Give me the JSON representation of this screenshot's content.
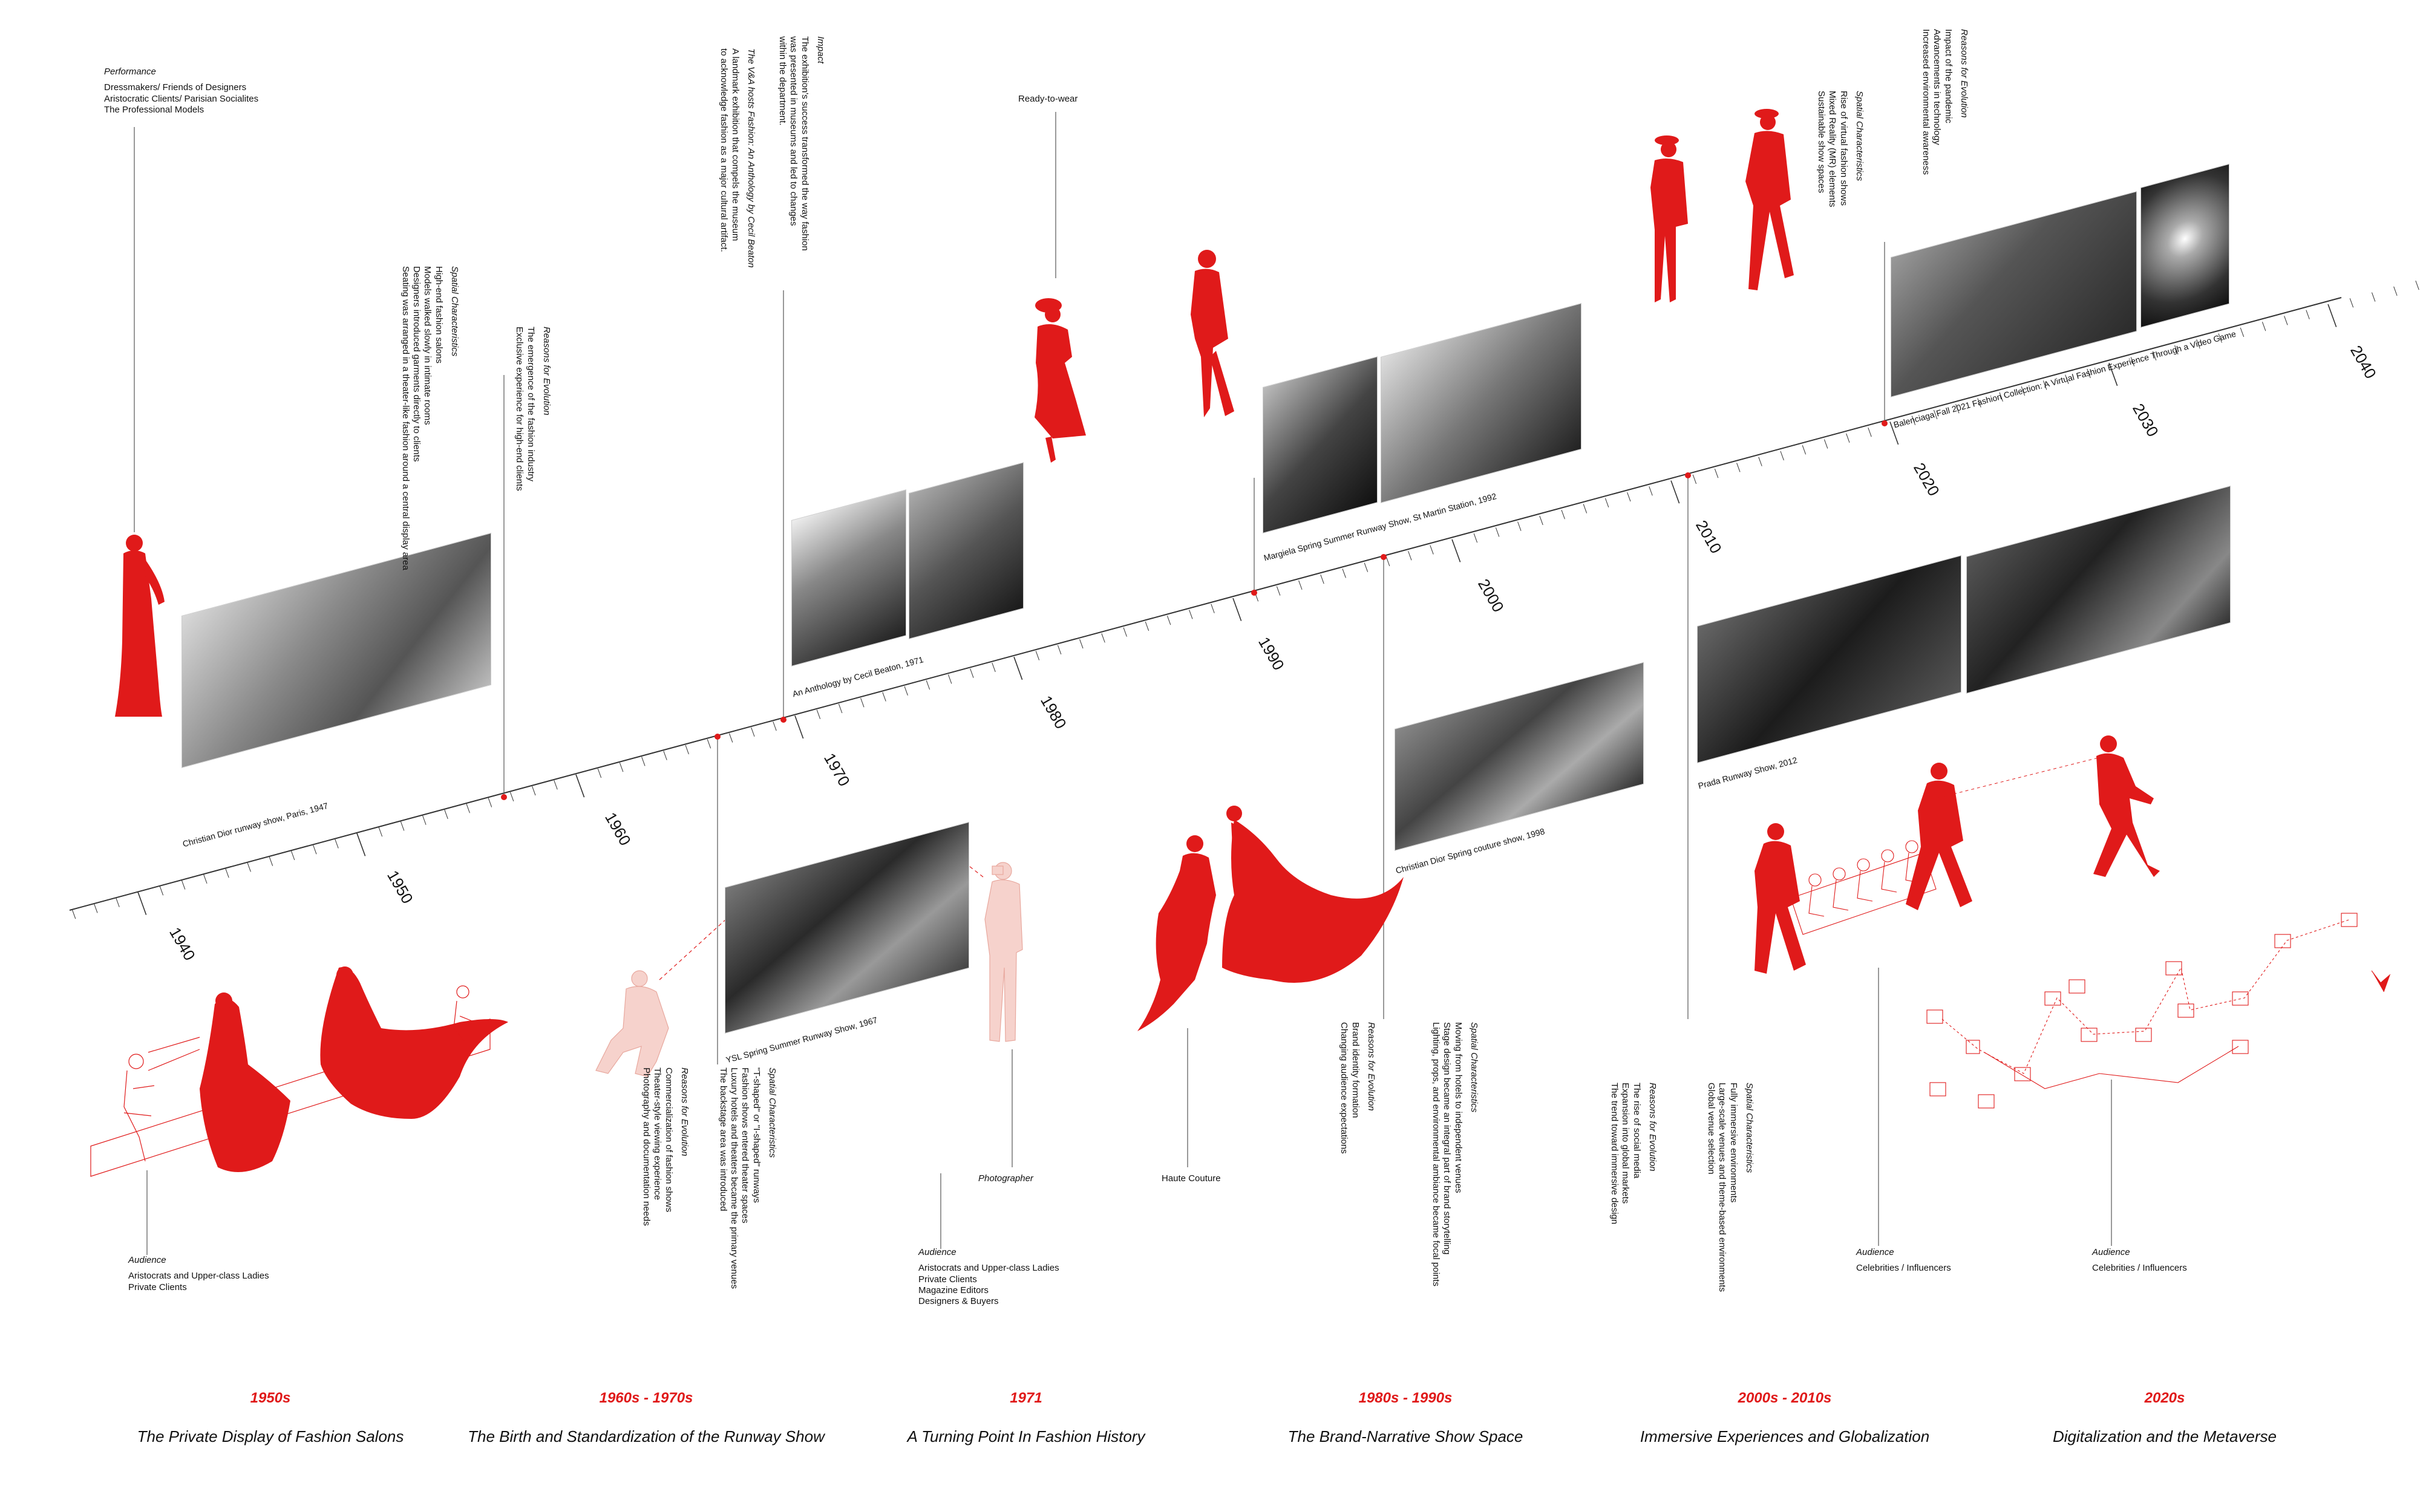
{
  "timeline": {
    "years": [
      "1940",
      "1950",
      "1960",
      "1970",
      "1980",
      "1990",
      "2000",
      "2010",
      "2020",
      "2030",
      "2040"
    ]
  },
  "annotations": {
    "performance": {
      "heading": "Performance",
      "lines": [
        "Dressmakers/ Friends of Designers",
        "Aristocratic Clients/ Parisian Socialites",
        "The Professional Models"
      ]
    },
    "salon_spatial": {
      "heading": "Spatial Characteristics",
      "lines": [
        "High-end fashion salons",
        "Models walked slowly in intimate rooms",
        "Designers introduced garments directly to clients",
        "Seating was arranged in a theater-like fashion around a central display area"
      ]
    },
    "salon_reasons": {
      "heading": "Reasons for Evolution",
      "lines": [
        "The emergence of the fashion industry",
        "Exclusive experience for high-end clients"
      ]
    },
    "va": {
      "heading": "The V&A hosts Fashion: An Anthology by Cecil Beaton",
      "lines": [
        "A landmark exhibition that compels the museum",
        "to acknowledge fashion as a major cultural artifact."
      ]
    },
    "impact": {
      "heading": "Impact",
      "lines": [
        "The exhibition's success transformed the way fashion",
        "was presented in museums and led to changes",
        "within the department."
      ]
    },
    "ready_to_wear": "Ready-to-wear",
    "audience_1950": {
      "heading": "Audience",
      "lines": [
        "Aristocrats and Upper-class Ladies",
        "Private Clients"
      ]
    },
    "runway_reasons": {
      "heading": "Reasons for Evolution",
      "lines": [
        "Commercialization of fashion shows",
        "Theater-style viewing experience",
        "Photography and documentation needs"
      ]
    },
    "runway_spatial": {
      "heading": "Spatial Characteristics",
      "lines": [
        "\"T-shaped\" or \"I-shaped\" runways",
        "Fashion shows entered theater spaces",
        "Luxury hotels and theaters became the primary venues",
        "The backstage area was introduced"
      ]
    },
    "photographer": "Photographer",
    "audience_1971": {
      "heading": "Audience",
      "lines": [
        "Aristocrats and Upper-class Ladies",
        "Private Clients",
        "Magazine Editors",
        "Designers & Buyers"
      ]
    },
    "haute_couture": "Haute Couture",
    "brand_reasons": {
      "heading": "Reasons for Evolution",
      "lines": [
        "Brand identity formation",
        "Changing audience expectations"
      ]
    },
    "brand_spatial": {
      "heading": "Spatial Characteristics",
      "lines": [
        "Moving from hotels to independent venues",
        "Stage design became an integral part of brand storytelling",
        "Lighting, props, and environmental ambiance became focal points"
      ]
    },
    "global_reasons": {
      "heading": "Reasons for Evolution",
      "lines": [
        "The rise of social media",
        "Expansion into global markets",
        "The trend toward immersive design"
      ]
    },
    "global_spatial": {
      "heading": "Spatial Characteristics",
      "lines": [
        "Fully immersive environments",
        "Large-scale venues and theme-based environments",
        "Global venue selection"
      ]
    },
    "virtual_spatial": {
      "heading": "Spatial Characteristics",
      "lines": [
        "Rise of virtual fashion shows",
        "Mixed Reality (MR) elements",
        "Sustainable show spaces"
      ]
    },
    "virtual_reasons": {
      "heading": "Reasons for Evolution",
      "lines": [
        "Impact of the pandemic",
        "Advancements in technology",
        "Increased environmental awareness"
      ]
    },
    "audience_2010": {
      "heading": "Audience",
      "lines": [
        "Celebrities / Influencers"
      ]
    },
    "audience_2020": {
      "heading": "Audience",
      "lines": [
        "Celebrities / Influencers"
      ]
    }
  },
  "photos": {
    "dior_1947": "Christian Dior runway show, Paris, 1947",
    "beaton_1971": "An Anthology by Cecil Beaton, 1971",
    "margiela_1992": "Margiela Spring Summer Runway Show, St Martin Station, 1992",
    "balenciaga_2021": "Balenciaga Fall 2021 Fashion Collection: A Virtual Fashion Experience Through a Video Game",
    "ysl_1967": "YSL Spring Summer Runway Show, 1967",
    "dior_1998": "Christian Dior Spring couture show, 1998",
    "prada_2012": "Prada Runway Show, 2012"
  },
  "eras": [
    {
      "period": "1950s",
      "title": "The Private Display of Fashion Salons"
    },
    {
      "period": "1960s - 1970s",
      "title": "The Birth and Standardization of the Runway Show"
    },
    {
      "period": "1971",
      "title": "A Turning Point In Fashion History"
    },
    {
      "period": "1980s - 1990s",
      "title": "The Brand-Narrative Show Space"
    },
    {
      "period": "2000s - 2010s",
      "title": "Immersive Experiences and Globalization"
    },
    {
      "period": "2020s",
      "title": "Digitalization and the Metaverse"
    }
  ],
  "colors": {
    "accent": "#e01a1a",
    "light_accent": "#f2b8b0",
    "ink": "#111111"
  }
}
